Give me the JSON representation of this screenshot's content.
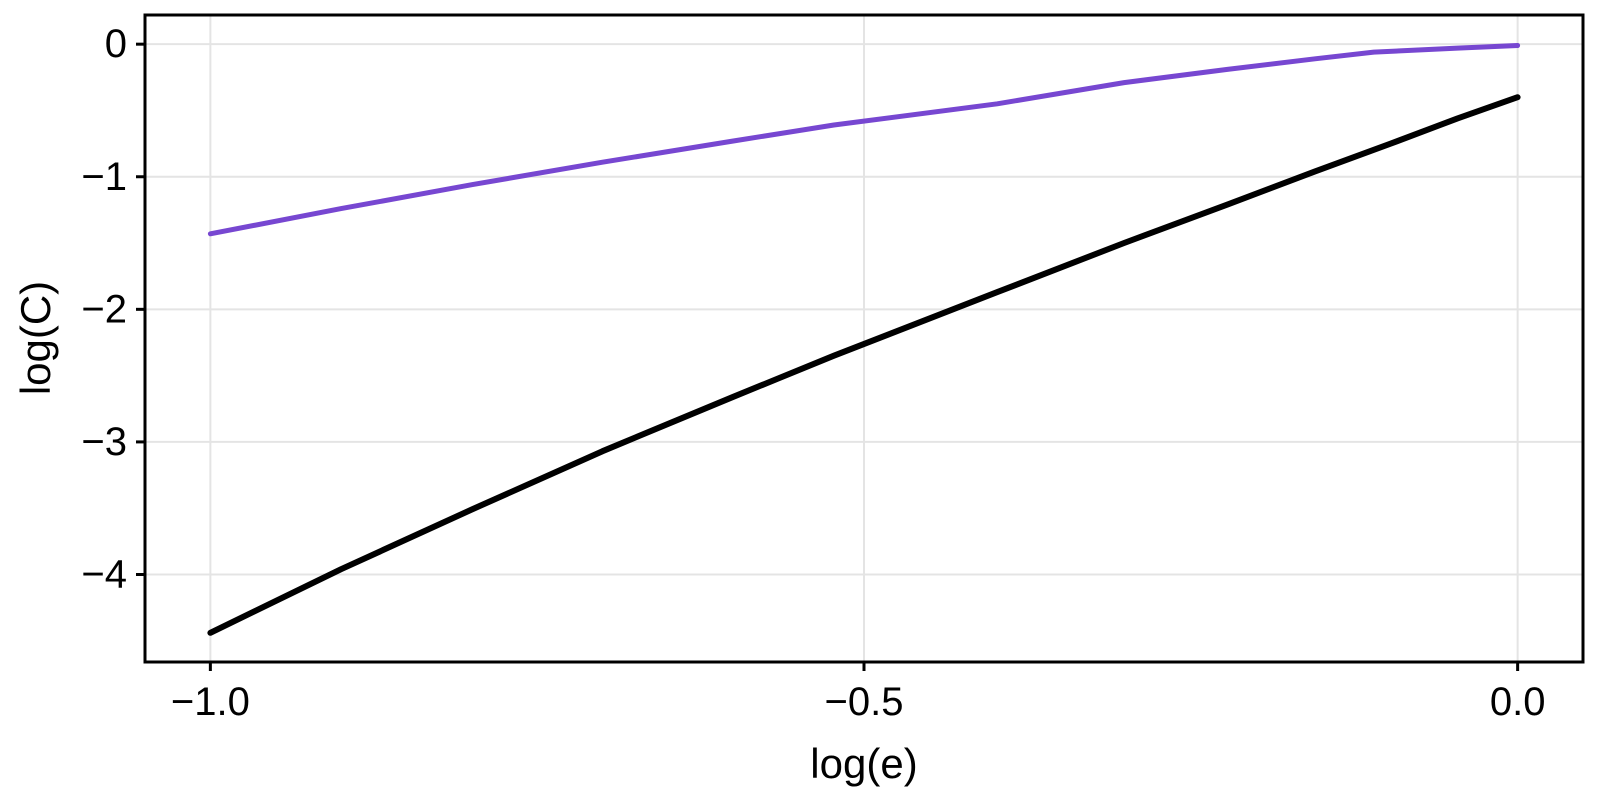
{
  "chart_data": {
    "type": "line",
    "title": "",
    "xlabel": "log(e)",
    "ylabel": "log(C)",
    "xlim": [
      -1.05,
      0.05
    ],
    "ylim": [
      -4.66,
      0.22
    ],
    "grid": true,
    "legend": "none",
    "background": "#ffffff",
    "colors": {
      "grid": "#e4e4e4",
      "frame": "#000000",
      "tick": "#000000",
      "text": "#000000",
      "series_upper": "#7747d1",
      "series_lower": "#000000"
    },
    "x_ticks": [
      {
        "value": -1.0,
        "label": "−1.0"
      },
      {
        "value": -0.5,
        "label": "−0.5"
      },
      {
        "value": 0.0,
        "label": "0.0"
      }
    ],
    "y_ticks": [
      {
        "value": 0,
        "label": "0"
      },
      {
        "value": -1,
        "label": "−1"
      },
      {
        "value": -2,
        "label": "−2"
      },
      {
        "value": -3,
        "label": "−3"
      },
      {
        "value": -4,
        "label": "−4"
      }
    ],
    "series": [
      {
        "name": "upper-purple",
        "color": "#7747d1",
        "width": 5,
        "points": [
          [
            -1.0,
            -1.43
          ],
          [
            -0.9,
            -1.24
          ],
          [
            -0.8,
            -1.06
          ],
          [
            -0.7,
            -0.89
          ],
          [
            -0.6,
            -0.73
          ],
          [
            -0.523,
            -0.61
          ],
          [
            -0.398,
            -0.45
          ],
          [
            -0.301,
            -0.29
          ],
          [
            -0.222,
            -0.19
          ],
          [
            -0.155,
            -0.11
          ],
          [
            -0.11,
            -0.06
          ],
          [
            -0.046,
            -0.03
          ],
          [
            0.0,
            -0.01
          ]
        ]
      },
      {
        "name": "lower-black",
        "color": "#000000",
        "width": 6,
        "points": [
          [
            -1.0,
            -4.44
          ],
          [
            -0.9,
            -3.96
          ],
          [
            -0.8,
            -3.51
          ],
          [
            -0.7,
            -3.07
          ],
          [
            -0.6,
            -2.66
          ],
          [
            -0.523,
            -2.35
          ],
          [
            -0.398,
            -1.87
          ],
          [
            -0.301,
            -1.5
          ],
          [
            -0.222,
            -1.21
          ],
          [
            -0.155,
            -0.96
          ],
          [
            -0.097,
            -0.75
          ],
          [
            -0.046,
            -0.56
          ],
          [
            0.0,
            -0.4
          ]
        ]
      }
    ]
  }
}
